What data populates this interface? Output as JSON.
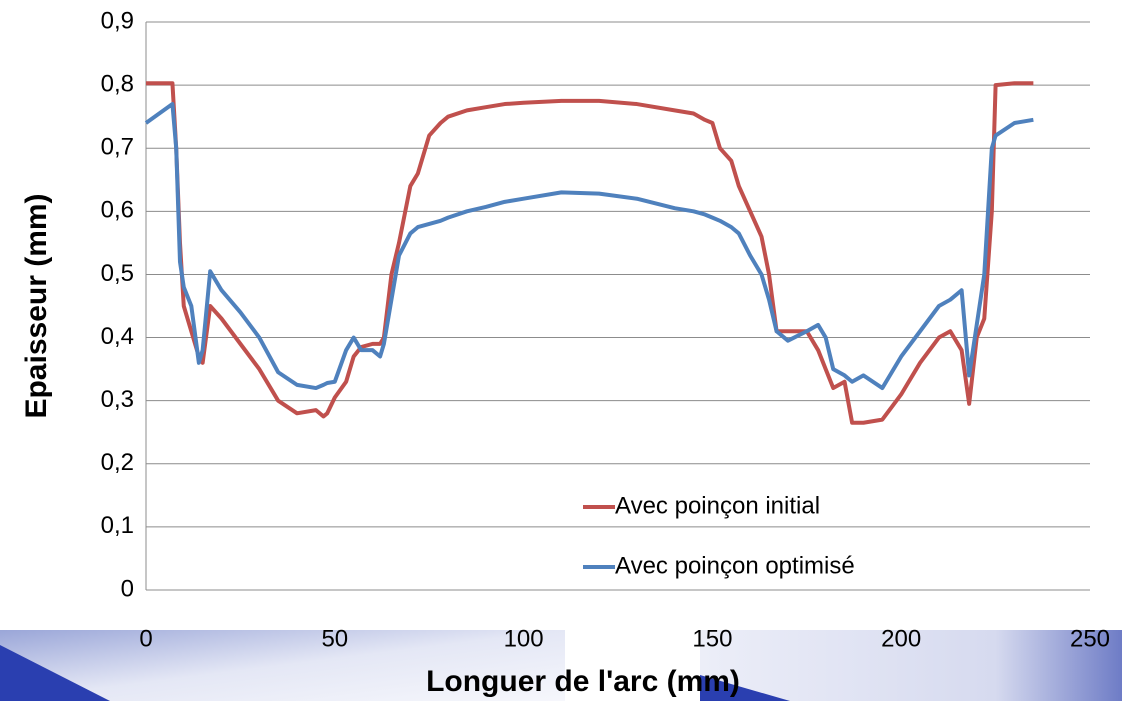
{
  "chart_data": {
    "type": "line",
    "x_label": "Longuer de l'arc (mm)",
    "y_label": "Epaisseur (mm)",
    "x": [
      0,
      7,
      8,
      9,
      10,
      12,
      14,
      15,
      17,
      20,
      25,
      30,
      35,
      40,
      45,
      47,
      48,
      50,
      53,
      55,
      57,
      60,
      62,
      63,
      65,
      67,
      70,
      72,
      75,
      78,
      80,
      85,
      90,
      95,
      100,
      110,
      120,
      130,
      140,
      145,
      148,
      150,
      152,
      155,
      157,
      160,
      163,
      165,
      167,
      170,
      175,
      178,
      180,
      182,
      185,
      187,
      190,
      195,
      200,
      205,
      210,
      213,
      216,
      218,
      220,
      222,
      224,
      225,
      230,
      235
    ],
    "series": [
      {
        "name": "Avec poinçon initial",
        "color": "#c0504d",
        "values": [
          0.803,
          0.803,
          0.7,
          0.55,
          0.45,
          0.41,
          0.37,
          0.36,
          0.45,
          0.43,
          0.39,
          0.35,
          0.3,
          0.28,
          0.285,
          0.275,
          0.28,
          0.305,
          0.33,
          0.37,
          0.385,
          0.39,
          0.39,
          0.4,
          0.5,
          0.55,
          0.64,
          0.66,
          0.72,
          0.74,
          0.75,
          0.76,
          0.765,
          0.77,
          0.772,
          0.775,
          0.775,
          0.77,
          0.76,
          0.755,
          0.745,
          0.74,
          0.7,
          0.68,
          0.64,
          0.6,
          0.56,
          0.5,
          0.41,
          0.41,
          0.41,
          0.38,
          0.35,
          0.32,
          0.33,
          0.265,
          0.265,
          0.27,
          0.31,
          0.36,
          0.4,
          0.41,
          0.38,
          0.295,
          0.4,
          0.43,
          0.6,
          0.8,
          0.803,
          0.803
        ]
      },
      {
        "name": "Avec poinçon optimisé",
        "color": "#4f81bd",
        "values": [
          0.74,
          0.77,
          0.7,
          0.52,
          0.48,
          0.45,
          0.36,
          0.38,
          0.505,
          0.475,
          0.44,
          0.4,
          0.345,
          0.325,
          0.32,
          0.325,
          0.328,
          0.33,
          0.38,
          0.4,
          0.38,
          0.38,
          0.37,
          0.39,
          0.46,
          0.53,
          0.565,
          0.575,
          0.58,
          0.585,
          0.59,
          0.6,
          0.607,
          0.615,
          0.62,
          0.63,
          0.628,
          0.62,
          0.605,
          0.6,
          0.595,
          0.59,
          0.585,
          0.575,
          0.565,
          0.53,
          0.5,
          0.46,
          0.41,
          0.395,
          0.41,
          0.42,
          0.4,
          0.35,
          0.34,
          0.33,
          0.34,
          0.32,
          0.37,
          0.41,
          0.45,
          0.46,
          0.475,
          0.34,
          0.42,
          0.5,
          0.7,
          0.72,
          0.74,
          0.745
        ]
      }
    ],
    "xlim": [
      0,
      250
    ],
    "xticks": [
      0,
      50,
      100,
      150,
      200,
      250
    ],
    "ylim": [
      0,
      0.9
    ],
    "yticks": [
      0,
      {
        "value": 0.1,
        "label": "0,1"
      },
      {
        "value": 0.2,
        "label": "0,2"
      },
      {
        "value": 0.3,
        "label": "0,3"
      },
      {
        "value": 0.4,
        "label": "0,4"
      },
      {
        "value": 0.5,
        "label": "0,5"
      },
      {
        "value": 0.6,
        "label": "0,6"
      },
      {
        "value": 0.7,
        "label": "0,7"
      },
      {
        "value": 0.8,
        "label": "0,8"
      },
      {
        "value": 0.9,
        "label": "0,9"
      }
    ],
    "grid": true,
    "legend": "lower right"
  }
}
